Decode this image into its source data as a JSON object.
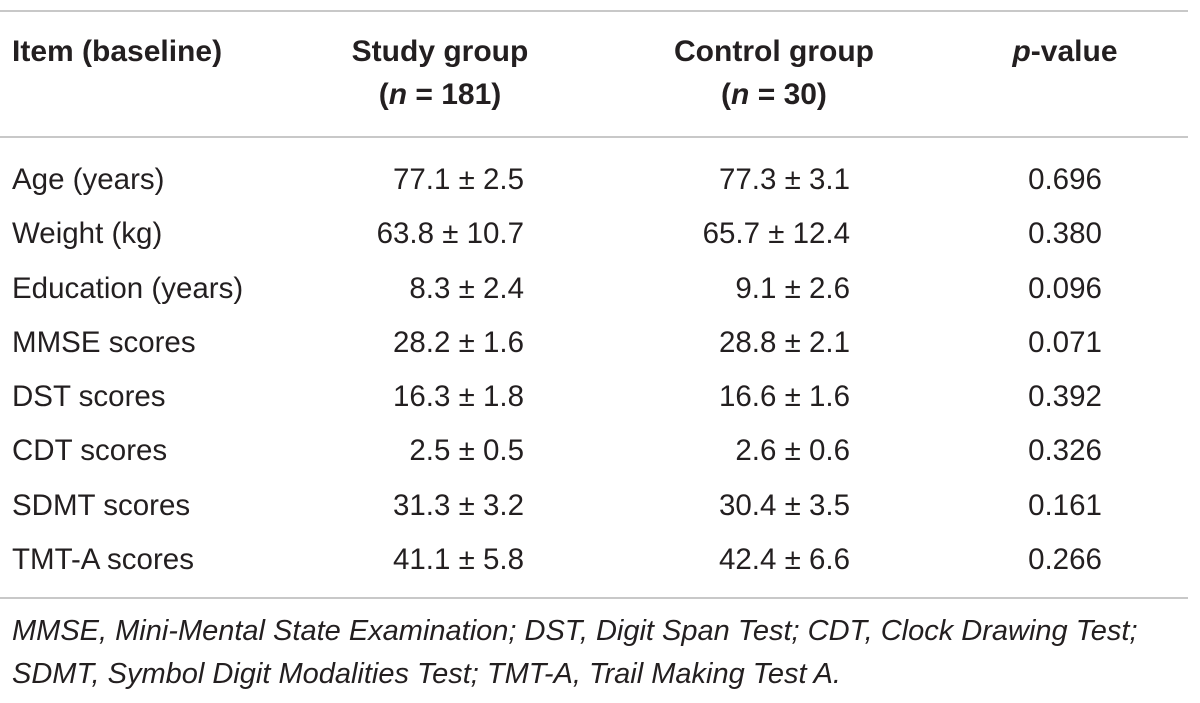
{
  "table": {
    "headers": {
      "item": "Item (baseline)",
      "study_line1": "Study group",
      "study_n_symbol": "n",
      "study_n_value": " = 181)",
      "control_line1": "Control group",
      "control_n_symbol": "n",
      "control_n_value": " = 30)",
      "p_symbol": "p",
      "p_suffix": "-value"
    },
    "rows": [
      {
        "item": "Age (years)",
        "study": "77.1 ± 2.5",
        "control": "77.3 ± 3.1",
        "p": "0.696"
      },
      {
        "item": "Weight (kg)",
        "study": "63.8 ± 10.7",
        "control": "65.7 ± 12.4",
        "p": "0.380"
      },
      {
        "item": "Education (years)",
        "study": "8.3 ± 2.4",
        "control": "9.1 ± 2.6",
        "p": "0.096"
      },
      {
        "item": "MMSE scores",
        "study": "28.2 ± 1.6",
        "control": "28.8 ± 2.1",
        "p": "0.071"
      },
      {
        "item": "DST scores",
        "study": "16.3 ± 1.8",
        "control": "16.6 ± 1.6",
        "p": "0.392"
      },
      {
        "item": "CDT scores",
        "study": "2.5 ± 0.5",
        "control": "2.6 ± 0.6",
        "p": "0.326"
      },
      {
        "item": "SDMT scores",
        "study": "31.3 ± 3.2",
        "control": "30.4 ± 3.5",
        "p": "0.161"
      },
      {
        "item": "TMT-A scores",
        "study": "41.1 ± 5.8",
        "control": "42.4 ± 6.6",
        "p": "0.266"
      }
    ],
    "footnote": "MMSE, Mini-Mental State Examination; DST, Digit Span Test; CDT, Clock Drawing Test; SDMT, Symbol Digit Modalities Test; TMT-A, Trail Making Test A."
  }
}
